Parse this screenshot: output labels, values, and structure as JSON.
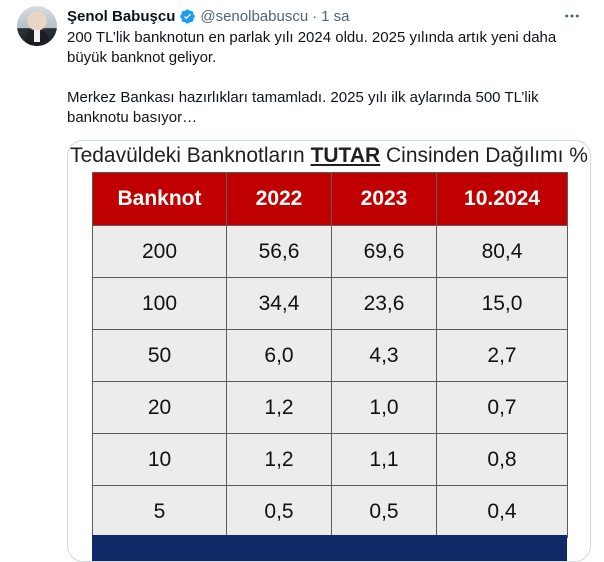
{
  "tweet": {
    "author_name": "Şenol Babuşcu",
    "handle": "@senolbabuscu",
    "separator": "·",
    "time": "1 sa",
    "more_icon": "more-icon",
    "verified_icon": "verified-badge-icon",
    "paragraphs": [
      "200 TL’lik banknotun en parlak yılı 2024 oldu. 2025 yılında artık yeni daha büyük banknot geliyor.",
      "Merkez Bankası hazırlıkları tamamladı. 2025 yılı ilk aylarında 500 TL’lik banknotu basıyor…"
    ]
  },
  "table": {
    "title_prefix": "Tedavüldeki Banknotların ",
    "title_emphasis": "TUTAR",
    "title_suffix": " Cinsinden Dağılımı %",
    "headers": [
      "Banknot",
      "2022",
      "2023",
      "10.2024"
    ],
    "rows": [
      [
        "200",
        "56,6",
        "69,6",
        "80,4"
      ],
      [
        "100",
        "34,4",
        "23,6",
        "15,0"
      ],
      [
        "50",
        "6,0",
        "4,3",
        "2,7"
      ],
      [
        "20",
        "1,2",
        "1,0",
        "0,7"
      ],
      [
        "10",
        "1,2",
        "1,1",
        "0,8"
      ],
      [
        "5",
        "0,5",
        "0,5",
        "0,4"
      ]
    ]
  },
  "colors": {
    "header_red": "#c00000",
    "cell_gray": "#ececec",
    "verified_blue": "#1d9bf0",
    "navy": "#0f2a66"
  }
}
